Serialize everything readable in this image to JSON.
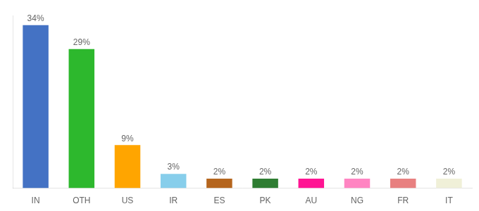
{
  "chart_data": {
    "type": "bar",
    "categories": [
      "IN",
      "OTH",
      "US",
      "IR",
      "ES",
      "PK",
      "AU",
      "NG",
      "FR",
      "IT"
    ],
    "values": [
      34,
      29,
      9,
      3,
      2,
      2,
      2,
      2,
      2,
      2
    ],
    "value_labels": [
      "34%",
      "29%",
      "9%",
      "3%",
      "2%",
      "2%",
      "2%",
      "2%",
      "2%",
      "2%"
    ],
    "colors": [
      "#4472c4",
      "#2db82d",
      "#ffa500",
      "#87ceeb",
      "#b5651d",
      "#2e7d32",
      "#ff1493",
      "#ff85c2",
      "#e88080",
      "#f0f0d8"
    ],
    "ylim": [
      0,
      36
    ],
    "grid": false,
    "data_labels": true,
    "tick_labels": "x"
  }
}
